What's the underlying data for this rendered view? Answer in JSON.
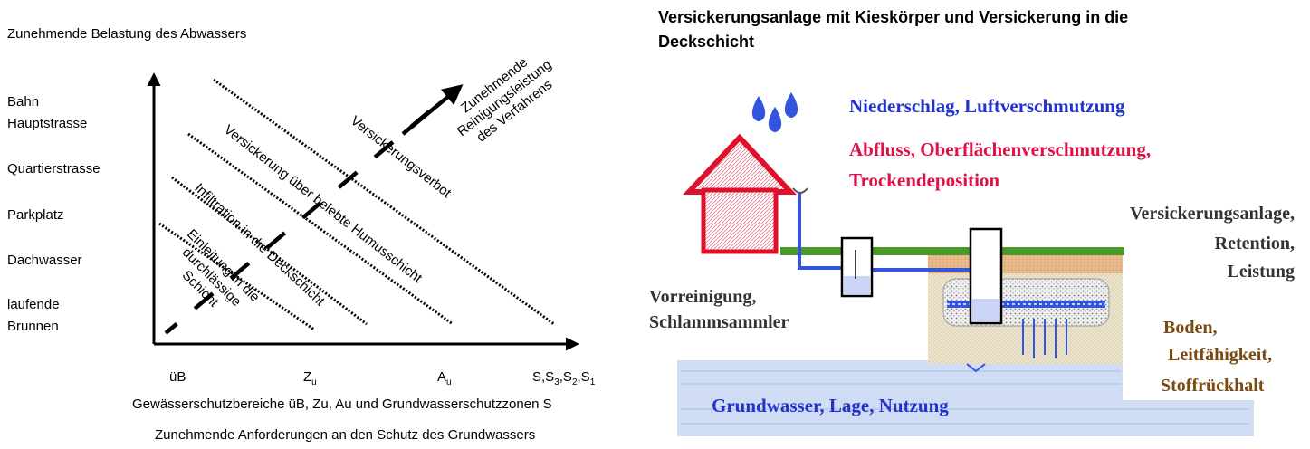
{
  "left_diagram": {
    "y_title": "Zunehmende Belastung des Abwassers",
    "y_categories": [
      "Bahn",
      "Hauptstrasse",
      "Quartierstrasse",
      "Parkplatz",
      "Dachwasser",
      "laufende",
      "Brunnen"
    ],
    "x_categories": {
      "ub": "üB",
      "zu_main": "Z",
      "zu_sub": "u",
      "au_main": "A",
      "au_sub": "u",
      "s_main1": "S,S",
      "s_sub3": "3",
      "s_main2": ",S",
      "s_sub2": "2",
      "s_main3": ",S",
      "s_sub1": "1"
    },
    "x_title": "Gewässerschutzbereiche üB, Zu, Au und Grundwasserschutzzonen S",
    "bottom_title": "Zunehmende Anforderungen an den Schutz des Grundwassers",
    "arrow_label": [
      "Zunehmende",
      "Reinigungsleistung",
      "des Verfahrens"
    ],
    "zones": {
      "versickerungsverbot": "Versickerungsverbot",
      "humus": "Versickerung über belebte Humusschicht",
      "deckschicht": "Infiltration in die Deckschicht",
      "einleitung": [
        "Einleitung in die",
        "durchlässige",
        "Schicht"
      ]
    }
  },
  "right_diagram": {
    "title_line1": "Versickerungsanlage mit Kieskörper und Versickerung in die",
    "title_line2": "Deckschicht",
    "niederschlag": "Niederschlag, Luftverschmutzung",
    "abfluss_line1": "Abfluss, Oberflächenverschmutzung,",
    "abfluss_line2": "Trockendeposition",
    "anlage": [
      "Versickerungsanlage,",
      "Retention,",
      "Leistung"
    ],
    "vorreinigung": [
      "Vorreinigung,",
      "Schlammsammler"
    ],
    "boden": [
      "Boden,",
      "Leitfähigkeit,",
      "Stoffrückhalt"
    ],
    "grundwasser": "Grundwasser, Lage, Nutzung"
  },
  "colors": {
    "blue_text": "#2233cc",
    "red_text": "#dd1144",
    "brown_text": "#7a4a10",
    "house_red": "#e0102a",
    "water_blue": "#3355dd",
    "ground_green": "#4a9a2a",
    "groundwater": "#cfdcf4"
  }
}
